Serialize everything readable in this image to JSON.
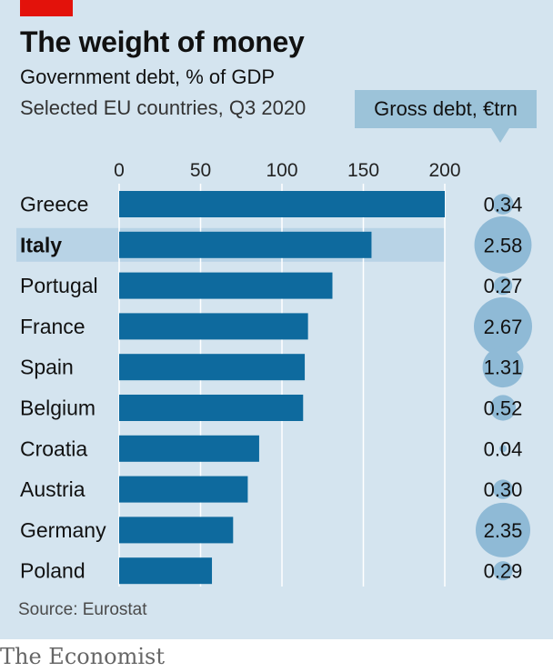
{
  "header": {
    "title": "The weight of money",
    "subtitle": "Government debt, % of GDP",
    "subtitle2": "Selected EU countries, Q3 2020",
    "debt_label": "Gross debt, €trn"
  },
  "footer": {
    "source": "Source: Eurostat",
    "brand": "The Economist"
  },
  "colors": {
    "bar": "#0e6a9e",
    "bubble": "#8fbad6",
    "highlight": "#b8d3e6",
    "grid": "#ffffff",
    "panel": "#d4e4ef",
    "accent_red": "#e3120b"
  },
  "chart_data": {
    "type": "bar",
    "orientation": "horizontal",
    "categories": [
      "Greece",
      "Italy",
      "Portugal",
      "France",
      "Spain",
      "Belgium",
      "Croatia",
      "Austria",
      "Germany",
      "Poland"
    ],
    "highlight": "Italy",
    "series": [
      {
        "values": [
          200,
          155,
          131,
          116,
          114,
          113,
          86,
          79,
          70,
          57
        ]
      }
    ],
    "gross_debt_trn": [
      0.34,
      2.58,
      0.27,
      2.67,
      1.31,
      0.52,
      0.04,
      0.3,
      2.35,
      0.29
    ],
    "gross_debt_labels": [
      "0.34",
      "2.58",
      "0.27",
      "2.67",
      "1.31",
      "0.52",
      "0.04",
      "0.30",
      "2.35",
      "0.29"
    ],
    "xlim": [
      0,
      200
    ],
    "xticks": [
      "0",
      "50",
      "100",
      "150",
      "200"
    ],
    "grid": true
  }
}
